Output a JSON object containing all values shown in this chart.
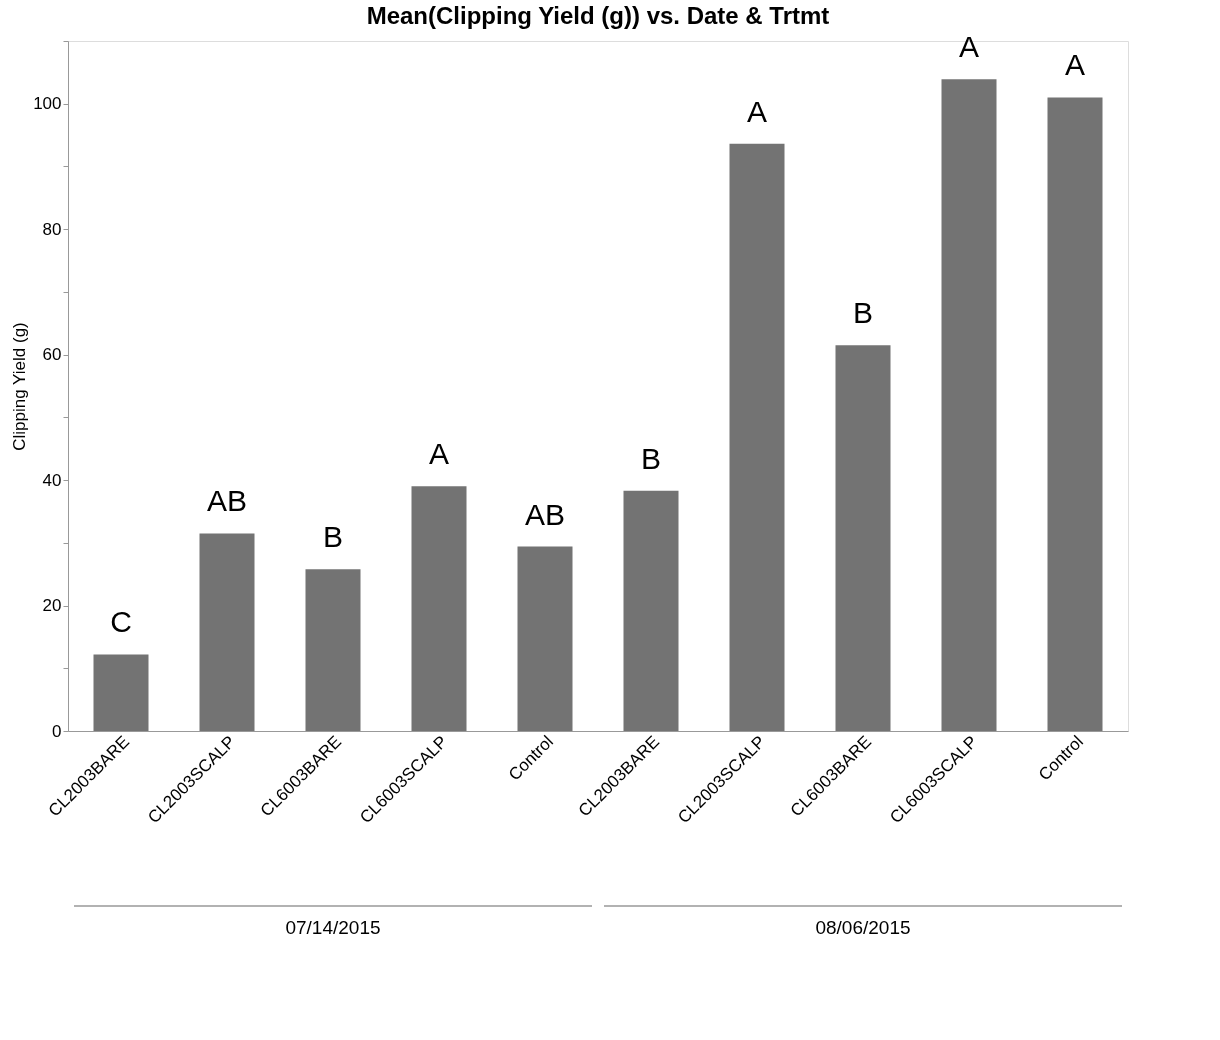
{
  "chart_data": {
    "type": "bar",
    "title": "Mean(Clipping Yield (g)) vs. Date & Trtmt",
    "ylabel": "Clipping Yield (g)",
    "categories": [
      "CL2003BARE",
      "CL2003SCALP",
      "CL6003BARE",
      "CL6003SCALP",
      "Control",
      "CL2003BARE",
      "CL2003SCALP",
      "CL6003BARE",
      "CL6003SCALP",
      "Control"
    ],
    "values": [
      12.2,
      31.5,
      25.8,
      39.0,
      29.4,
      38.3,
      93.6,
      61.5,
      103.9,
      101.0
    ],
    "value_labels": [
      "C",
      "AB",
      "B",
      "A",
      "AB",
      "B",
      "A",
      "B",
      "A",
      "A"
    ],
    "color": "#737373",
    "ylim": [
      0,
      110
    ],
    "yticks": [
      0,
      {
        "value": 10,
        "label": null
      },
      20,
      {
        "value": 30,
        "label": null
      },
      40,
      {
        "value": 50,
        "label": null
      },
      60,
      {
        "value": 70,
        "label": null
      },
      80,
      {
        "value": 90,
        "label": null
      },
      100,
      {
        "value": 110,
        "label": null
      }
    ],
    "grid": false,
    "annotations": [
      "07/14/2015",
      "08/06/2015"
    ]
  }
}
